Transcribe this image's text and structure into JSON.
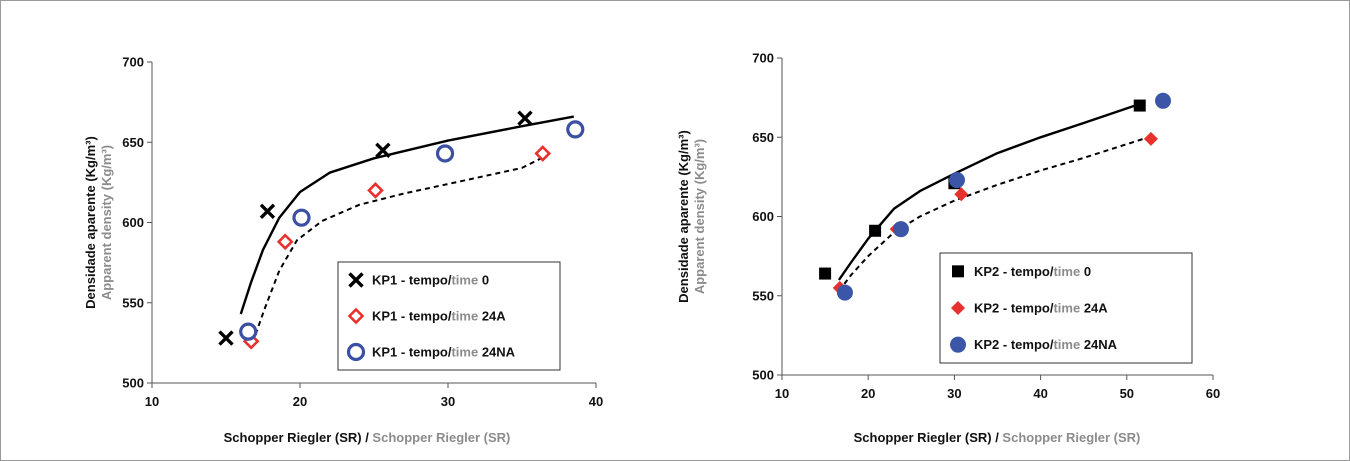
{
  "chart_data": [
    {
      "type": "scatter",
      "title": "",
      "xlabel": {
        "pt": "Schopper Riegler (SR)",
        "sep": " / ",
        "en": "Schopper Riegler (SR)"
      },
      "ylabel": {
        "pt": "Densidade aparente (Kg/m³)",
        "en": "Apparent density (Kg/m³)"
      },
      "xlim": [
        10,
        40
      ],
      "ylim": [
        500,
        700
      ],
      "xticks": [
        10,
        20,
        30,
        40
      ],
      "yticks": [
        500,
        550,
        600,
        650,
        700
      ],
      "legend_position": "bottom-right",
      "series": [
        {
          "name": {
            "pt": "KP1 - tempo/",
            "en": "time",
            "suffix": " 0"
          },
          "marker": "cross",
          "color": "#000000",
          "points": [
            [
              15.0,
              528
            ],
            [
              17.8,
              607
            ],
            [
              25.6,
              645
            ],
            [
              35.2,
              665
            ]
          ]
        },
        {
          "name": {
            "pt": "KP1 - tempo/",
            "en": "time",
            "suffix": " 24A"
          },
          "marker": "diamond-open",
          "color": "#e8312c",
          "points": [
            [
              16.7,
              526
            ],
            [
              19.0,
              588
            ],
            [
              25.1,
              620
            ],
            [
              36.4,
              643
            ]
          ]
        },
        {
          "name": {
            "pt": "KP1 - tempo/",
            "en": "time",
            "suffix": " 24NA"
          },
          "marker": "circle-open",
          "color": "#3b4fa3",
          "points": [
            [
              16.5,
              532
            ],
            [
              20.1,
              603
            ],
            [
              29.8,
              643
            ],
            [
              38.6,
              658
            ]
          ]
        }
      ],
      "trendlines": [
        {
          "style": "solid",
          "color": "#000000",
          "points": [
            [
              16.0,
              543
            ],
            [
              16.7,
              563
            ],
            [
              17.5,
              583
            ],
            [
              18.6,
              603
            ],
            [
              20.0,
              619
            ],
            [
              22.0,
              631
            ],
            [
              25.0,
              640
            ],
            [
              30.0,
              651
            ],
            [
              35.0,
              660
            ],
            [
              38.5,
              666
            ]
          ]
        },
        {
          "style": "dashed",
          "color": "#000000",
          "points": [
            [
              16.8,
              525
            ],
            [
              17.6,
              546
            ],
            [
              18.6,
              570
            ],
            [
              19.8,
              589
            ],
            [
              21.5,
              601
            ],
            [
              24.0,
              611
            ],
            [
              27.0,
              618
            ],
            [
              31.0,
              626
            ],
            [
              35.0,
              634
            ],
            [
              36.5,
              641
            ]
          ]
        }
      ]
    },
    {
      "type": "scatter",
      "title": "",
      "xlabel": {
        "pt": "Schopper Riegler (SR)",
        "sep": " / ",
        "en": "Schopper Riegler (SR)"
      },
      "ylabel": {
        "pt": "Densidade aparente (Kg/m³)",
        "en": "Apparent density (Kg/m³)"
      },
      "xlim": [
        10,
        60
      ],
      "ylim": [
        500,
        700
      ],
      "xticks": [
        10,
        20,
        30,
        40,
        50,
        60
      ],
      "yticks": [
        500,
        550,
        600,
        650,
        700
      ],
      "legend_position": "bottom-right",
      "series": [
        {
          "name": {
            "pt": "KP2 - tempo/",
            "en": "time",
            "suffix": " 0"
          },
          "marker": "square",
          "color": "#000000",
          "points": [
            [
              15.0,
              564
            ],
            [
              20.8,
              591
            ],
            [
              30.0,
              621
            ],
            [
              51.5,
              670
            ]
          ]
        },
        {
          "name": {
            "pt": "KP2 - tempo/",
            "en": "time",
            "suffix": " 24A"
          },
          "marker": "diamond",
          "color": "#e8312c",
          "points": [
            [
              16.7,
              555
            ],
            [
              23.3,
              592
            ],
            [
              30.8,
              614
            ],
            [
              52.8,
              649
            ]
          ]
        },
        {
          "name": {
            "pt": "KP2 - tempo/",
            "en": "time",
            "suffix": " 24NA"
          },
          "marker": "circle",
          "color": "#3b56a6",
          "points": [
            [
              17.3,
              552
            ],
            [
              23.8,
              592
            ],
            [
              30.3,
              623
            ],
            [
              54.2,
              673
            ]
          ]
        }
      ],
      "trendlines": [
        {
          "style": "solid",
          "color": "#000000",
          "points": [
            [
              16.6,
              560
            ],
            [
              18.0,
              571
            ],
            [
              20.0,
              586
            ],
            [
              23.0,
              605
            ],
            [
              26.0,
              616
            ],
            [
              30.0,
              627
            ],
            [
              35.0,
              640
            ],
            [
              40.0,
              650
            ],
            [
              45.0,
              659
            ],
            [
              51.5,
              671
            ]
          ]
        },
        {
          "style": "dashed",
          "color": "#000000",
          "points": [
            [
              16.6,
              553
            ],
            [
              18.0,
              563
            ],
            [
              20.0,
              575
            ],
            [
              23.0,
              590
            ],
            [
              26.0,
              600
            ],
            [
              30.0,
              610
            ],
            [
              35.0,
              620
            ],
            [
              40.0,
              629
            ],
            [
              45.0,
              637
            ],
            [
              52.5,
              650
            ]
          ]
        }
      ]
    }
  ]
}
